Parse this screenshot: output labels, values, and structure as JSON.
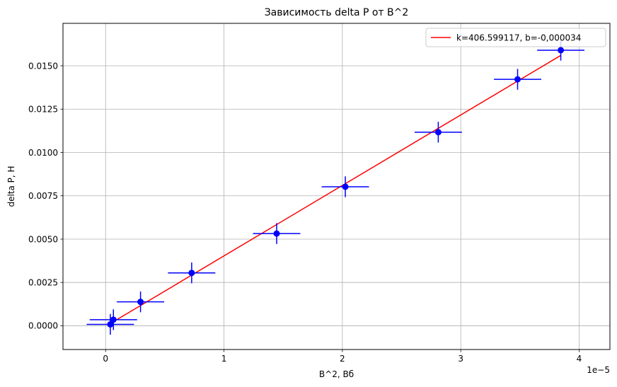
{
  "chart_data": {
    "type": "scatter",
    "title": "Зависимость delta P от B^2",
    "xlabel": "B^2, Вб",
    "ylabel": "delta P, Н",
    "x_offset_label": "1e−5",
    "xlim": [
      -3.6e-06,
      4.26e-05
    ],
    "ylim": [
      -0.00137,
      0.01745
    ],
    "x_ticks": [
      0,
      1e-05,
      2e-05,
      3e-05,
      4e-05
    ],
    "x_tick_labels": [
      "0",
      "1",
      "2",
      "3",
      "4"
    ],
    "y_ticks": [
      0.0,
      0.0025,
      0.005,
      0.0075,
      0.01,
      0.0125,
      0.015
    ],
    "y_tick_labels": [
      "0.0000",
      "0.0025",
      "0.0050",
      "0.0075",
      "0.0100",
      "0.0125",
      "0.0150"
    ],
    "grid": true,
    "legend_position": "top-right",
    "points": {
      "color": "#0000ff",
      "x": [
        4e-07,
        6.6e-07,
        2.95e-06,
        7.27e-06,
        1.445e-05,
        2.025e-05,
        2.81e-05,
        3.48e-05,
        3.845e-05
      ],
      "y": [
        8e-05,
        0.00035,
        0.00138,
        0.00305,
        0.00532,
        0.00802,
        0.01117,
        0.01422,
        0.0159
      ],
      "x_err": [
        2e-06,
        2e-06,
        2e-06,
        2e-06,
        2e-06,
        2e-06,
        2e-06,
        2e-06,
        2e-06
      ],
      "y_err": [
        0.0006,
        0.0006,
        0.0006,
        0.0006,
        0.0006,
        0.0006,
        0.0006,
        0.0006,
        0.0006
      ]
    },
    "fit_line": {
      "name": "k=406.599117, b=-0,000034",
      "color": "#ff0000",
      "k": 406.599117,
      "b": -3.4e-05,
      "x_range": [
        4e-07,
        3.845e-05
      ]
    }
  }
}
